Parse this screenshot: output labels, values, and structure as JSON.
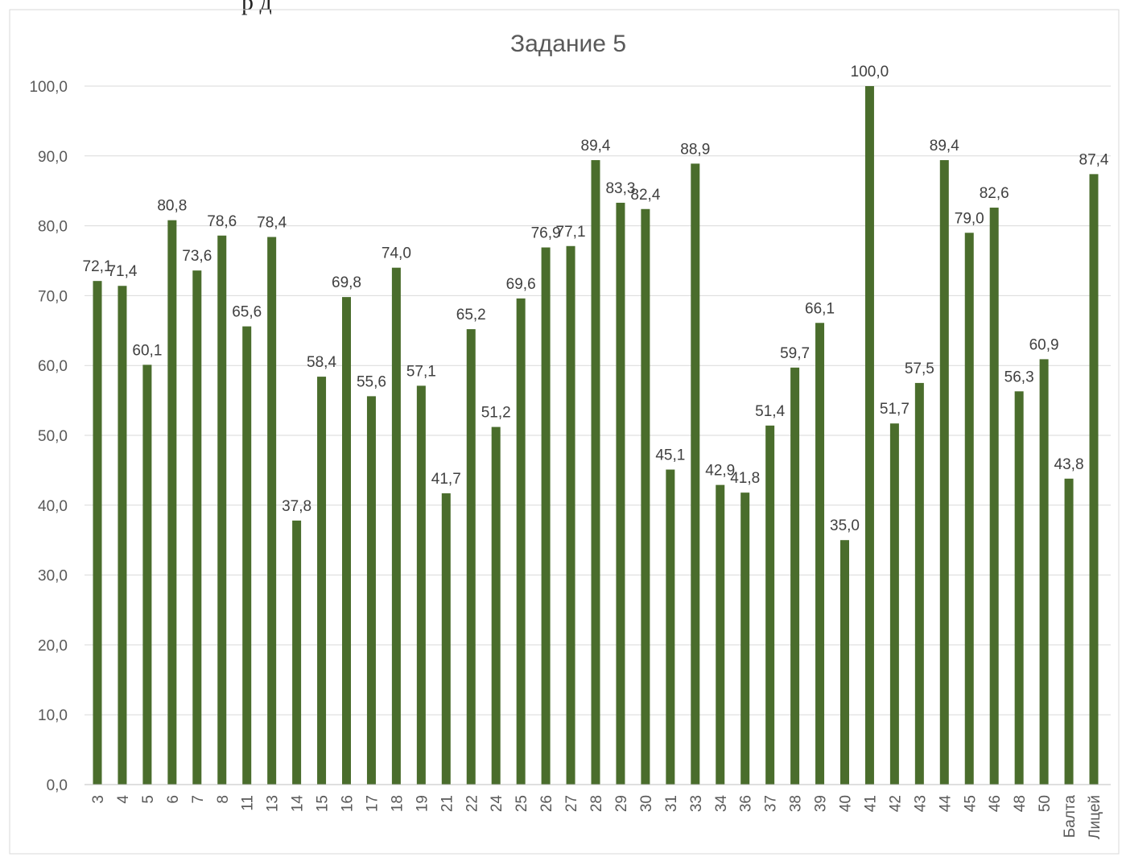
{
  "header_fragment": "р     д",
  "chart_data": {
    "type": "bar",
    "title": "Задание 5",
    "xlabel": "",
    "ylabel": "",
    "ylim": [
      0,
      100
    ],
    "y_ticks": [
      "0,0",
      "10,0",
      "20,0",
      "30,0",
      "40,0",
      "50,0",
      "60,0",
      "70,0",
      "80,0",
      "90,0",
      "100,0"
    ],
    "grid": true,
    "legend": "none",
    "bar_color": "#4a6d2c",
    "categories": [
      "3",
      "4",
      "5",
      "6",
      "7",
      "8",
      "11",
      "13",
      "14",
      "15",
      "16",
      "17",
      "18",
      "19",
      "21",
      "22",
      "24",
      "25",
      "26",
      "27",
      "28",
      "29",
      "30",
      "31",
      "33",
      "34",
      "36",
      "37",
      "38",
      "39",
      "40",
      "41",
      "42",
      "43",
      "44",
      "45",
      "46",
      "48",
      "50",
      "Балта",
      "Лицей"
    ],
    "values": [
      72.1,
      71.4,
      60.1,
      80.8,
      73.6,
      78.6,
      65.6,
      78.4,
      37.8,
      58.4,
      69.8,
      55.6,
      74.0,
      57.1,
      41.7,
      65.2,
      51.2,
      69.6,
      76.9,
      77.1,
      89.4,
      83.3,
      82.4,
      45.1,
      88.9,
      42.9,
      41.8,
      51.4,
      59.7,
      66.1,
      35.0,
      100.0,
      51.7,
      57.5,
      89.4,
      79.0,
      82.6,
      56.3,
      60.9,
      43.8,
      87.4
    ],
    "data_labels": [
      "72,1",
      "71,4",
      "60,1",
      "80,8",
      "73,6",
      "78,6",
      "65,6",
      "78,4",
      "37,8",
      "58,4",
      "69,8",
      "55,6",
      "74,0",
      "57,1",
      "41,7",
      "65,2",
      "51,2",
      "69,6",
      "76,9",
      "77,1",
      "89,4",
      "83,3",
      "82,4",
      "45,1",
      "88,9",
      "42,9",
      "41,8",
      "51,4",
      "59,7",
      "66,1",
      "35,0",
      "100,0",
      "51,7",
      "57,5",
      "89,4",
      "79,0",
      "82,6",
      "56,3",
      "60,9",
      "43,8",
      "87,4"
    ]
  }
}
